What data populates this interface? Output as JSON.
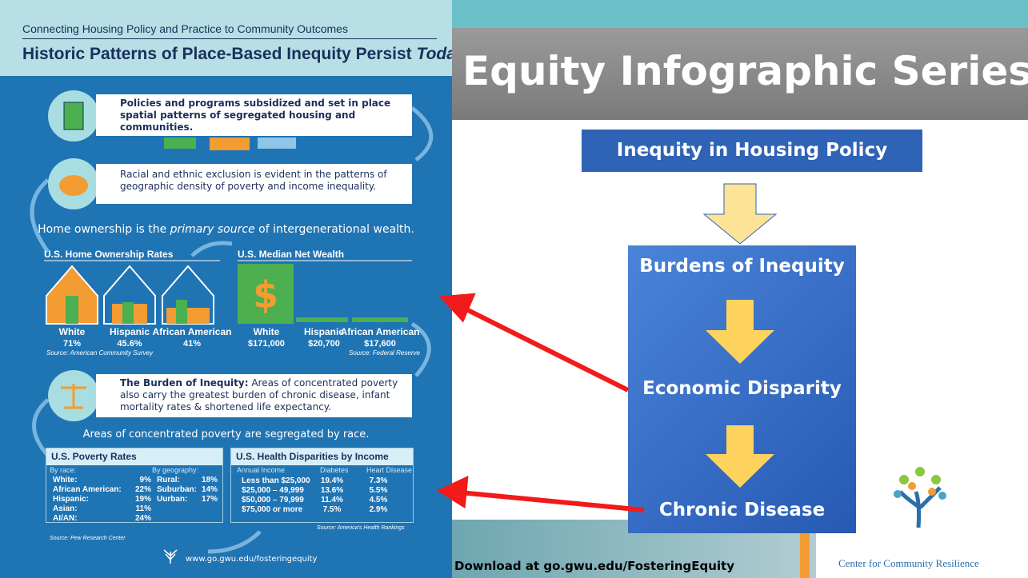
{
  "slide": {
    "title": "Equity Infographic Series",
    "flow": [
      "Inequity in Housing Policy",
      "Burdens of Inequity",
      "Economic Disparity",
      "Chronic Disease"
    ],
    "download": "Download at go.gwu.edu/FosteringEquity",
    "logo_text": "Center for Community Resilience"
  },
  "infographic": {
    "header": {
      "subtitle": "Connecting Housing Policy and Practice to Community Outcomes",
      "title": "Historic Patterns of Place-Based Inequity Persist",
      "title_emphasis": "Today"
    },
    "box1": "Policies and programs subsidized and set in place spatial patterns of segregated housing and communities.",
    "box2": "Racial and ethnic exclusion is evident in the patterns of geographic density of poverty and income inequality.",
    "statement": {
      "before": "Home ownership is the",
      "emphasis": "primary source",
      "after": "of intergenerational wealth."
    },
    "ownership": {
      "title": "U.S. Home Ownership Rates",
      "items": [
        {
          "label": "White",
          "value": "71%"
        },
        {
          "label": "Hispanic",
          "value": "45.6%"
        },
        {
          "label": "African American",
          "value": "41%"
        }
      ],
      "source": "Source: American Community Survey"
    },
    "wealth": {
      "title": "U.S. Median Net Wealth",
      "items": [
        {
          "label": "White",
          "value": "$171,000"
        },
        {
          "label": "Hispanic",
          "value": "$20,700"
        },
        {
          "label": "African American",
          "value": "$17,600"
        }
      ],
      "source": "Source: Federal Reserve"
    },
    "burden": {
      "bold": "The Burden of Inequity:",
      "text": "Areas of concentrated poverty also carry the greatest burden of chronic disease, infant mortality rates & shortened life expectancy."
    },
    "segregation": "Areas of concentrated poverty are segregated by race.",
    "poverty": {
      "title": "U.S. Poverty Rates",
      "race_label": "By race:",
      "race": [
        [
          "White:",
          "9%"
        ],
        [
          "African American:",
          "22%"
        ],
        [
          "Hispanic:",
          "19%"
        ],
        [
          "Asian:",
          "11%"
        ],
        [
          "AI/AN:",
          "24%"
        ]
      ],
      "geo_label": "By geography:",
      "geo": [
        [
          "Rural:",
          "18%"
        ],
        [
          "Suburban:",
          "14%"
        ],
        [
          "Uurban:",
          "17%"
        ]
      ],
      "source": "Source: Pew Research Center"
    },
    "health": {
      "title": "U.S. Health Disparities by Income",
      "headers": [
        "Annual Income",
        "Diabetes",
        "Heart Disease"
      ],
      "rows": [
        [
          "Less than $25,000",
          "19.4%",
          "7.3%"
        ],
        [
          "$25,000 – 49,999",
          "13.6%",
          "5.5%"
        ],
        [
          "$50,000 – 79,999",
          "11.4%",
          "4.5%"
        ],
        [
          "$75,000 or more",
          "7.5%",
          "2.9%"
        ]
      ],
      "source": "Source: America's Health Rankings"
    },
    "url": "www.go.gwu.edu/fosteringequity"
  }
}
